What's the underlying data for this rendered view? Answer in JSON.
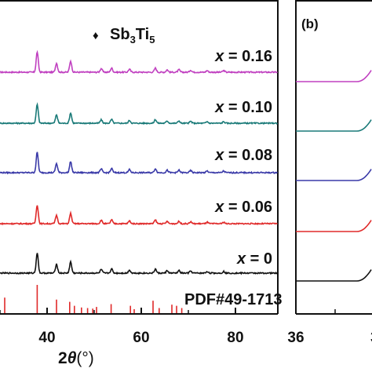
{
  "chart_data": [
    {
      "type": "line",
      "panel_label": "",
      "xlabel_main": "2",
      "xlabel_theta": "θ",
      "xlabel_unit": "(°)",
      "xlim": [
        30,
        89
      ],
      "xticks": [
        40,
        60,
        80
      ],
      "legend": {
        "marker": "♦",
        "base": "Sb",
        "sub1": "3",
        "mid": "Ti",
        "sub2": "5"
      },
      "series": [
        {
          "name": "x = 0.16",
          "var": "x",
          "eq": "= 0.16",
          "color": "#c040c0",
          "base": 0.0
        },
        {
          "name": "x = 0.10",
          "var": "x",
          "eq": "= 0.10",
          "color": "#1a7a78",
          "base": 0.0
        },
        {
          "name": "x = 0.08",
          "var": "x",
          "eq": "= 0.08",
          "color": "#3a3aa8",
          "base": 0.0
        },
        {
          "name": "x = 0.06",
          "var": "x",
          "eq": "= 0.06",
          "color": "#e02a2a",
          "base": 0.0
        },
        {
          "name": "x = 0",
          "var": "x",
          "eq": "= 0",
          "color": "#111111",
          "base": 0.0
        }
      ],
      "peaks_2theta": [
        37.9,
        42.0,
        45.0,
        51.5,
        53.7,
        57.5,
        63.0,
        65.5,
        68.0,
        70.5,
        74.0,
        77.5
      ],
      "peak_heights": [
        1.0,
        0.45,
        0.55,
        0.18,
        0.2,
        0.15,
        0.2,
        0.12,
        0.12,
        0.1,
        0.08,
        0.08
      ],
      "reference": {
        "label": "PDF#49-1713",
        "color": "#e02a2a",
        "lines": [
          {
            "x": 31.0,
            "h": 0.55
          },
          {
            "x": 37.9,
            "h": 1.0
          },
          {
            "x": 42.0,
            "h": 0.48
          },
          {
            "x": 44.8,
            "h": 0.4
          },
          {
            "x": 45.8,
            "h": 0.26
          },
          {
            "x": 47.3,
            "h": 0.2
          },
          {
            "x": 48.6,
            "h": 0.18
          },
          {
            "x": 49.7,
            "h": 0.16
          },
          {
            "x": 50.5,
            "h": 0.22
          },
          {
            "x": 53.6,
            "h": 0.32
          },
          {
            "x": 57.7,
            "h": 0.26
          },
          {
            "x": 58.5,
            "h": 0.14
          },
          {
            "x": 62.5,
            "h": 0.44
          },
          {
            "x": 63.8,
            "h": 0.18
          },
          {
            "x": 66.5,
            "h": 0.3
          },
          {
            "x": 67.5,
            "h": 0.26
          },
          {
            "x": 68.6,
            "h": 0.18
          }
        ]
      }
    },
    {
      "type": "line",
      "panel_label": "(b)",
      "xlim": [
        36,
        40
      ],
      "xticks": [
        36
      ],
      "tick_edge_label": "3",
      "series": [
        {
          "name": "x = 0.16",
          "color": "#c040c0"
        },
        {
          "name": "x = 0.10",
          "color": "#1a7a78"
        },
        {
          "name": "x = 0.08",
          "color": "#3a3aa8"
        },
        {
          "name": "x = 0.06",
          "color": "#e02a2a"
        },
        {
          "name": "x = 0",
          "color": "#111111"
        }
      ]
    }
  ]
}
